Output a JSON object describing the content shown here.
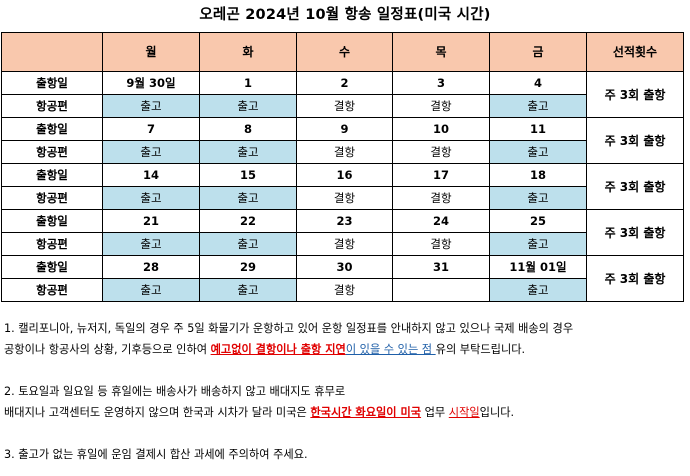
{
  "title": "오레곤 2024년 10월 항송 일정표(미국 시간)",
  "header": {
    "corner": "",
    "days": [
      "월",
      "화",
      "수",
      "목",
      "금"
    ],
    "count_label": "선적횟수"
  },
  "row_labels": {
    "date": "출항일",
    "flight": "항공편"
  },
  "weeks": [
    {
      "dates": [
        "9월 30일",
        "1",
        "2",
        "3",
        "4"
      ],
      "flights": [
        "출고",
        "출고",
        "결항",
        "결항",
        "출고"
      ],
      "flight_bg": [
        true,
        true,
        false,
        false,
        true
      ],
      "count": "주 3회 출항"
    },
    {
      "dates": [
        "7",
        "8",
        "9",
        "10",
        "11"
      ],
      "flights": [
        "출고",
        "출고",
        "결항",
        "결항",
        "출고"
      ],
      "flight_bg": [
        true,
        true,
        false,
        false,
        true
      ],
      "count": "주 3회 출항"
    },
    {
      "dates": [
        "14",
        "15",
        "16",
        "17",
        "18"
      ],
      "flights": [
        "출고",
        "출고",
        "결항",
        "결항",
        "출고"
      ],
      "flight_bg": [
        true,
        true,
        false,
        false,
        true
      ],
      "count": "주 3회 출항"
    },
    {
      "dates": [
        "21",
        "22",
        "23",
        "24",
        "25"
      ],
      "flights": [
        "출고",
        "출고",
        "결항",
        "결항",
        "출고"
      ],
      "flight_bg": [
        true,
        true,
        false,
        false,
        true
      ],
      "count": "주 3회 출항"
    },
    {
      "dates": [
        "28",
        "29",
        "30",
        "31",
        "11월 01일"
      ],
      "flights": [
        "출고",
        "출고",
        "결항",
        "",
        "출고"
      ],
      "flight_bg": [
        true,
        true,
        false,
        false,
        true
      ],
      "count": "주 3회 출항"
    }
  ],
  "notes": {
    "n1_line1": "1. 캘리포니아, 뉴저지, 독일의 경우 주 5일 화물기가 운항하고 있어 운항 일정표를 안내하지 않고 있으나 국제 배송의 경우",
    "n1_line2_a": "공항이나 항공사의 상황, 기후등으로 인하여 ",
    "n1_line2_red": "예고없이 결항이나 출항 지연",
    "n1_line2_blue": "이 있을 수 있는 점 ",
    "n1_line2_end": "유의 부탁드립니다.",
    "n2_line1": "2. 토요일과 일요일 등 휴일에는 배송사가 배송하지 않고 배대지도 휴무로",
    "n2_line2_a": "배대지나 고객센터도 운영하지 않으며 한국과 시차가 달라 미국은 ",
    "n2_line2_red": "한국시간 화요일이 미국",
    "n2_line2_b": " 업무 ",
    "n2_line2_red2": "시작일",
    "n2_line2_end": "입니다.",
    "n3": "3. 출고가 없는 휴일에 운임 결제시 합산 과세에 주의하여 주세요."
  },
  "colors": {
    "header_bg": "#f9c8ad",
    "cell_blue": "#bde0ec",
    "emphasis_red": "#e00000",
    "emphasis_blue": "#1f5fa8"
  }
}
